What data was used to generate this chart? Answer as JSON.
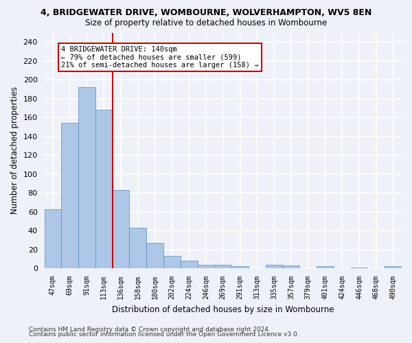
{
  "title_line1": "4, BRIDGEWATER DRIVE, WOMBOURNE, WOLVERHAMPTON, WV5 8EN",
  "title_line2": "Size of property relative to detached houses in Wombourne",
  "xlabel": "Distribution of detached houses by size in Wombourne",
  "ylabel": "Number of detached properties",
  "categories": [
    "47sqm",
    "69sqm",
    "91sqm",
    "113sqm",
    "136sqm",
    "158sqm",
    "180sqm",
    "202sqm",
    "224sqm",
    "246sqm",
    "269sqm",
    "291sqm",
    "313sqm",
    "335sqm",
    "357sqm",
    "379sqm",
    "401sqm",
    "424sqm",
    "446sqm",
    "468sqm",
    "490sqm"
  ],
  "values": [
    63,
    154,
    192,
    168,
    83,
    43,
    27,
    13,
    8,
    4,
    4,
    2,
    0,
    4,
    3,
    0,
    2,
    0,
    1,
    0,
    2
  ],
  "bar_color": "#aec6e8",
  "bar_edge_color": "#5b8db8",
  "vline_x": 3.5,
  "vline_color": "#cc0000",
  "annotation_text": "4 BRIDGEWATER DRIVE: 140sqm\n← 79% of detached houses are smaller (599)\n21% of semi-detached houses are larger (158) →",
  "annotation_box_color": "#ffffff",
  "annotation_box_edge_color": "#cc0000",
  "ylim": [
    0,
    250
  ],
  "yticks": [
    0,
    20,
    40,
    60,
    80,
    100,
    120,
    140,
    160,
    180,
    200,
    220,
    240
  ],
  "background_color": "#eef2f8",
  "grid_color": "#ffffff",
  "footer_line1": "Contains HM Land Registry data © Crown copyright and database right 2024.",
  "footer_line2": "Contains public sector information licensed under the Open Government Licence v3.0."
}
